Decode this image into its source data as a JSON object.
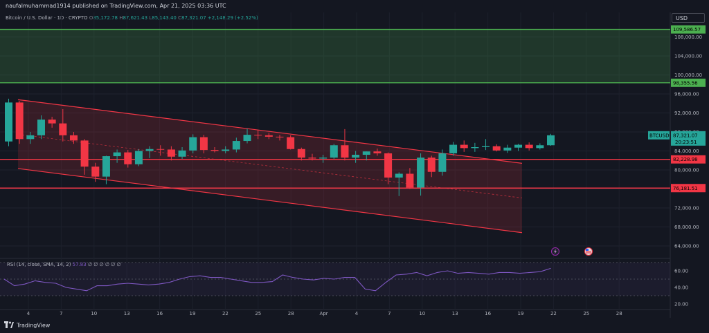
{
  "header": {
    "publisher": "naufalmuhammad1914 published on TradingView.com, Apr 21, 2025 03:36 UTC",
    "symbol_name": "Bitcoin / U.S. Dollar · 1D · CRYPTO",
    "open_label": "O",
    "open": "85,172.78",
    "high_label": "H",
    "high": "87,621.43",
    "low_label": "L",
    "low": "85,143.40",
    "close_label": "C",
    "close": "87,321.07",
    "change": "+2,148.29 (+2.52%)",
    "currency": "USD"
  },
  "footer": {
    "brand": "TradingView"
  },
  "rsi": {
    "label": "RSI (14, close, SMA, 14, 2)",
    "value": "57.83",
    "extras": "∅ ∅ ∅ ∅ ∅ ∅",
    "ticks": [
      60,
      40,
      20
    ],
    "tick_labels": [
      "60.00",
      "40.00",
      "20.00"
    ],
    "values": [
      50,
      42,
      44,
      48,
      46,
      45,
      40,
      38,
      36,
      42,
      42,
      44,
      45,
      44,
      43,
      44,
      46,
      50,
      53,
      54,
      52,
      52,
      50,
      48,
      46,
      46,
      47,
      55,
      52,
      50,
      49,
      51,
      50,
      52,
      52,
      38,
      36,
      46,
      55,
      56,
      58,
      54,
      58,
      60,
      57,
      58,
      57,
      56,
      58,
      58,
      57,
      58,
      59,
      63
    ]
  },
  "chart_data": {
    "type": "candlestick",
    "symbol": "BTCUSD",
    "price_tag": "87,321.07",
    "countdown": "20:23:51",
    "y_ticks": [
      108000,
      104000,
      100000,
      96000,
      92000,
      88000,
      84000,
      80000,
      76000,
      72000,
      68000,
      64000
    ],
    "y_tick_labels": [
      "108,000.00",
      "104,000.00",
      "100,000.00",
      "96,000.00",
      "92,000.00",
      "88,000.00",
      "84,000.00",
      "80,000.00",
      "76,000.00",
      "72,000.00",
      "68,000.00",
      "64,000.00"
    ],
    "x_ticks": [
      "4",
      "7",
      "10",
      "13",
      "16",
      "19",
      "22",
      "25",
      "28",
      "Apr",
      "4",
      "7",
      "10",
      "13",
      "16",
      "19",
      "22",
      "25",
      "28"
    ],
    "horizontal_levels": [
      {
        "label": "109,586.57",
        "value": 109586.57,
        "color": "#4caf50"
      },
      {
        "label": "98,355.56",
        "value": 98355.56,
        "color": "#4caf50"
      },
      {
        "label": "82,228.98",
        "value": 82228.98,
        "color": "#f23645"
      },
      {
        "label": "76,181.51",
        "value": 76181.51,
        "color": "#f23645"
      }
    ],
    "candles": [
      {
        "o": 86000,
        "h": 95000,
        "l": 85000,
        "c": 94200
      },
      {
        "o": 94200,
        "h": 94500,
        "l": 85500,
        "c": 86500
      },
      {
        "o": 86500,
        "h": 88000,
        "l": 85500,
        "c": 87300
      },
      {
        "o": 87300,
        "h": 91500,
        "l": 86500,
        "c": 90600
      },
      {
        "o": 90600,
        "h": 91200,
        "l": 88900,
        "c": 89800
      },
      {
        "o": 89800,
        "h": 92800,
        "l": 86000,
        "c": 87300
      },
      {
        "o": 87300,
        "h": 88000,
        "l": 85500,
        "c": 86200
      },
      {
        "o": 86200,
        "h": 86500,
        "l": 79000,
        "c": 80700
      },
      {
        "o": 80700,
        "h": 81500,
        "l": 77500,
        "c": 78600
      },
      {
        "o": 78600,
        "h": 83000,
        "l": 77000,
        "c": 82900
      },
      {
        "o": 82900,
        "h": 84300,
        "l": 81500,
        "c": 83700
      },
      {
        "o": 83700,
        "h": 84200,
        "l": 80500,
        "c": 81200
      },
      {
        "o": 81200,
        "h": 84400,
        "l": 80800,
        "c": 84000
      },
      {
        "o": 84000,
        "h": 85000,
        "l": 82500,
        "c": 84400
      },
      {
        "o": 84400,
        "h": 85200,
        "l": 83000,
        "c": 84300
      },
      {
        "o": 84300,
        "h": 85000,
        "l": 82000,
        "c": 82800
      },
      {
        "o": 82800,
        "h": 84800,
        "l": 82300,
        "c": 84100
      },
      {
        "o": 84100,
        "h": 87500,
        "l": 83500,
        "c": 86900
      },
      {
        "o": 86900,
        "h": 87400,
        "l": 83500,
        "c": 84200
      },
      {
        "o": 84200,
        "h": 84800,
        "l": 83700,
        "c": 84000
      },
      {
        "o": 84000,
        "h": 85000,
        "l": 83500,
        "c": 84300
      },
      {
        "o": 84300,
        "h": 86800,
        "l": 83700,
        "c": 86100
      },
      {
        "o": 86100,
        "h": 88700,
        "l": 85600,
        "c": 87400
      },
      {
        "o": 87400,
        "h": 88400,
        "l": 86500,
        "c": 87300
      },
      {
        "o": 87300,
        "h": 87800,
        "l": 86500,
        "c": 87000
      },
      {
        "o": 87000,
        "h": 87400,
        "l": 86200,
        "c": 86900
      },
      {
        "o": 86900,
        "h": 87300,
        "l": 84300,
        "c": 84400
      },
      {
        "o": 84400,
        "h": 84700,
        "l": 82000,
        "c": 82600
      },
      {
        "o": 82600,
        "h": 83400,
        "l": 82000,
        "c": 82400
      },
      {
        "o": 82400,
        "h": 83200,
        "l": 81500,
        "c": 82600
      },
      {
        "o": 82600,
        "h": 85500,
        "l": 82300,
        "c": 85200
      },
      {
        "o": 85200,
        "h": 88600,
        "l": 82000,
        "c": 82600
      },
      {
        "o": 82600,
        "h": 84000,
        "l": 81500,
        "c": 83200
      },
      {
        "o": 83200,
        "h": 83900,
        "l": 82000,
        "c": 83900
      },
      {
        "o": 83900,
        "h": 84500,
        "l": 83000,
        "c": 83500
      },
      {
        "o": 83500,
        "h": 83700,
        "l": 77000,
        "c": 78400
      },
      {
        "o": 78400,
        "h": 79500,
        "l": 74500,
        "c": 79200
      },
      {
        "o": 79200,
        "h": 80400,
        "l": 76000,
        "c": 76300
      },
      {
        "o": 76300,
        "h": 83500,
        "l": 74600,
        "c": 82600
      },
      {
        "o": 82600,
        "h": 83000,
        "l": 78500,
        "c": 79600
      },
      {
        "o": 79600,
        "h": 84300,
        "l": 78800,
        "c": 83500
      },
      {
        "o": 83500,
        "h": 85900,
        "l": 83000,
        "c": 85300
      },
      {
        "o": 85300,
        "h": 86200,
        "l": 83800,
        "c": 84600
      },
      {
        "o": 84600,
        "h": 85700,
        "l": 83800,
        "c": 84800
      },
      {
        "o": 84800,
        "h": 86500,
        "l": 84200,
        "c": 85000
      },
      {
        "o": 85000,
        "h": 85400,
        "l": 83900,
        "c": 84100
      },
      {
        "o": 84100,
        "h": 85300,
        "l": 83600,
        "c": 84700
      },
      {
        "o": 84700,
        "h": 85500,
        "l": 84000,
        "c": 85300
      },
      {
        "o": 85300,
        "h": 85800,
        "l": 84100,
        "c": 84600
      },
      {
        "o": 84600,
        "h": 85600,
        "l": 84300,
        "c": 85200
      },
      {
        "o": 85200,
        "h": 87600,
        "l": 85100,
        "c": 87300
      }
    ],
    "channel": {
      "upper_start": 94800,
      "upper_end": 81400,
      "lower_start": 80300,
      "lower_end": 66800,
      "mid_start": 87500,
      "mid_end": 74100
    },
    "colors": {
      "up": "#26a69a",
      "down": "#f23645",
      "green_zone": "#4caf50",
      "red_zone": "#f23645",
      "rsi": "#7e57c2"
    }
  }
}
